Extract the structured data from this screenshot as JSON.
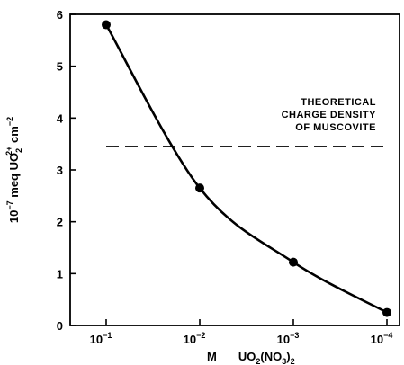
{
  "chart_data": {
    "type": "line",
    "title": "",
    "xlabel": {
      "prefix": "M",
      "formula": "UO",
      "sub1": "2",
      "mid": "(NO",
      "sub2": "3",
      "end": ")",
      "sub3": "2"
    },
    "ylabel": {
      "prefix": "10",
      "exp1": "−7",
      "mid": " meq UO",
      "sub": "2",
      "exp2": "2+",
      "end": " cm",
      "exp3": "−2"
    },
    "x_scale": "log-reversed",
    "xlim": [
      0.1,
      0.0001
    ],
    "ylim": [
      0,
      6
    ],
    "x_ticks": [
      {
        "value": 0.1,
        "base": "10",
        "exp": "−1"
      },
      {
        "value": 0.01,
        "base": "10",
        "exp": "−2"
      },
      {
        "value": 0.001,
        "base": "10",
        "exp": "−3"
      },
      {
        "value": 0.0001,
        "base": "10",
        "exp": "−4"
      }
    ],
    "y_ticks": [
      "0",
      "1",
      "2",
      "3",
      "4",
      "5",
      "6"
    ],
    "series": [
      {
        "x": [
          0.1,
          0.01,
          0.001,
          0.0001
        ],
        "y": [
          5.8,
          2.65,
          1.22,
          0.25
        ]
      }
    ],
    "reference_line": {
      "y": 3.45,
      "style": "dashed",
      "x_range": [
        0.1,
        0.0001
      ],
      "label": [
        "THEORETICAL",
        "CHARGE DENSITY",
        "OF MUSCOVITE"
      ]
    },
    "grid": false
  }
}
